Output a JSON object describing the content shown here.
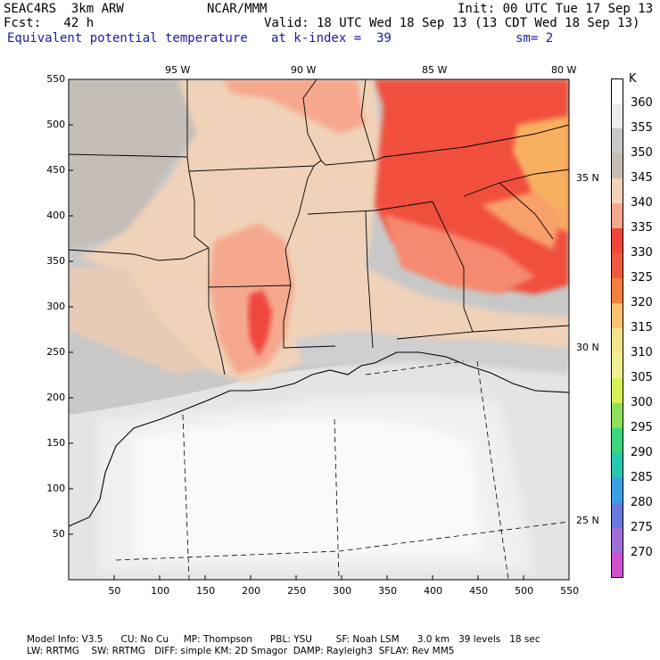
{
  "header": {
    "model": "SEAC4RS  3km ARW",
    "org": "NCAR/MMM",
    "init": "Init: 00 UTC Tue 17 Sep 13",
    "fcst": "Fcst:   42 h",
    "valid": "Valid: 18 UTC Wed 18 Sep 13 (13 CDT Wed 18 Sep 13)",
    "field": "Equivalent potential temperature",
    "level": "at k-index =  39",
    "smooth": "sm= 2"
  },
  "colors": {
    "text_blue": "#1a1aa6",
    "land_gray": "#c8c8c8",
    "sea_light": "#ececec"
  },
  "map": {
    "lon_labels": [
      "95 W",
      "90 W",
      "85 W",
      "80 W"
    ],
    "lat_labels": [
      "35 N",
      "30 N",
      "25 N"
    ],
    "x_ticks": [
      "50",
      "100",
      "150",
      "200",
      "250",
      "300",
      "350",
      "400",
      "450",
      "500",
      "550"
    ],
    "y_ticks": [
      "550",
      "500",
      "450",
      "400",
      "350",
      "300",
      "250",
      "200",
      "150",
      "100",
      "50"
    ]
  },
  "colorbar": {
    "unit": "K",
    "levels": [
      {
        "label": "360",
        "color": "#ffffff"
      },
      {
        "label": "355",
        "color": "#ececec"
      },
      {
        "label": "350",
        "color": "#c8c8c8"
      },
      {
        "label": "345",
        "color": "#c8bdb3"
      },
      {
        "label": "340",
        "color": "#f2d2b8"
      },
      {
        "label": "335",
        "color": "#f5a78e"
      },
      {
        "label": "330",
        "color": "#f0463c"
      },
      {
        "label": "325",
        "color": "#f05a3c"
      },
      {
        "label": "320",
        "color": "#f5803e"
      },
      {
        "label": "315",
        "color": "#f9c06e"
      },
      {
        "label": "310",
        "color": "#f4e48c"
      },
      {
        "label": "305",
        "color": "#f0f094"
      },
      {
        "label": "300",
        "color": "#d6f05a"
      },
      {
        "label": "295",
        "color": "#8ee05a"
      },
      {
        "label": "290",
        "color": "#3cd67e"
      },
      {
        "label": "285",
        "color": "#28c8b0"
      },
      {
        "label": "280",
        "color": "#3ca0e6"
      },
      {
        "label": "275",
        "color": "#6a78e0"
      },
      {
        "label": "270",
        "color": "#a070d8"
      },
      {
        "label": "",
        "color": "#d050d0"
      }
    ]
  },
  "footer": {
    "line1": "Model Info: V3.5      CU: No Cu     MP: Thompson      PBL: YSU        SF: Noah LSM      3.0 km   39 levels   18 sec",
    "line2": "LW: RRTMG    SW: RRTMG   DIFF: simple KM: 2D Smagor  DAMP: Rayleigh3  SFLAY: Rev MM5"
  }
}
